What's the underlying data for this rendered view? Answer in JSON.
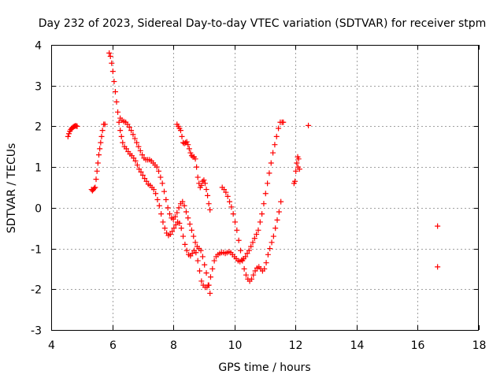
{
  "chart_data": {
    "type": "scatter",
    "title": "Day 232 of 2023, Sidereal Day-to-day VTEC variation (SDTVAR) for receiver stpm",
    "xlabel": "GPS time / hours",
    "ylabel": "SDTVAR / TECUs",
    "xlim": [
      4,
      18
    ],
    "ylim": [
      -3,
      4
    ],
    "xticks": [
      "4",
      "6",
      "8",
      "10",
      "12",
      "14",
      "16",
      "18"
    ],
    "yticks": [
      "-3",
      "-2",
      "-1",
      "0",
      "1",
      "2",
      "3",
      "4"
    ],
    "grid": true,
    "marker": "+",
    "series": [
      {
        "name": "SDTVAR",
        "color": "#ff0000",
        "x": [
          4.55,
          4.58,
          4.61,
          4.64,
          4.67,
          4.7,
          4.73,
          4.76,
          4.79,
          4.82,
          4.85,
          5.32,
          5.35,
          5.38,
          5.41,
          5.44,
          5.47,
          5.5,
          5.53,
          5.56,
          5.59,
          5.62,
          5.65,
          5.68,
          5.72,
          5.76,
          5.9,
          5.94,
          5.98,
          6.02,
          6.06,
          6.1,
          6.14,
          6.18,
          6.22,
          6.26,
          6.3,
          6.34,
          6.4,
          6.46,
          6.52,
          6.58,
          6.64,
          6.7,
          6.76,
          6.82,
          6.88,
          6.94,
          7.0,
          7.06,
          7.12,
          7.18,
          7.24,
          7.3,
          7.36,
          7.42,
          7.48,
          7.54,
          7.6,
          7.66,
          7.72,
          7.78,
          7.84,
          7.9,
          7.96,
          8.02,
          8.08,
          8.14,
          8.2,
          8.26,
          8.32,
          8.38,
          8.44,
          8.5,
          8.56,
          8.62,
          8.68,
          8.74,
          8.8,
          8.86,
          8.92,
          8.98,
          9.04,
          9.1,
          9.16,
          9.22,
          9.28,
          9.34,
          9.4,
          9.46,
          9.52,
          9.58,
          9.64,
          9.7,
          9.76,
          9.82,
          9.88,
          9.94,
          10.0,
          10.06,
          10.12,
          10.18,
          10.24,
          10.3,
          10.36,
          10.42,
          10.48,
          10.54,
          10.6,
          10.66,
          10.72,
          10.78,
          10.84,
          10.9,
          10.96,
          11.02,
          11.08,
          11.14,
          11.2,
          11.26,
          11.32,
          11.38,
          11.44,
          11.5,
          11.56,
          11.6,
          6.26,
          6.32,
          6.38,
          6.44,
          6.5,
          6.56,
          6.62,
          6.68,
          6.74,
          6.8,
          6.86,
          6.92,
          6.98,
          7.04,
          7.1,
          7.16,
          7.22,
          7.28,
          7.34,
          7.4,
          7.46,
          7.52,
          7.58,
          7.64,
          7.7,
          7.76,
          7.82,
          7.88,
          7.94,
          8.0,
          8.06,
          8.12,
          8.18,
          8.24,
          8.3,
          8.36,
          8.42,
          8.48,
          8.54,
          8.6,
          8.66,
          8.72,
          8.78,
          8.84,
          8.9,
          8.96,
          9.02,
          9.08,
          9.14,
          9.2,
          8.12,
          8.16,
          8.2,
          8.24,
          8.28,
          8.32,
          8.36,
          8.4,
          8.44,
          8.48,
          8.52,
          8.56,
          8.6,
          8.64,
          8.68,
          8.72,
          8.76,
          8.8,
          8.84,
          8.88,
          8.92,
          8.96,
          9.0,
          9.04,
          9.08,
          9.12,
          9.16,
          9.2,
          9.6,
          9.66,
          9.72,
          9.78,
          9.84,
          9.9,
          9.96,
          10.02,
          10.08,
          10.14,
          10.2,
          10.26,
          10.32,
          10.38,
          10.44,
          10.5,
          10.56,
          10.62,
          10.68,
          10.74,
          10.8,
          10.86,
          10.92,
          10.98,
          11.04,
          11.1,
          11.16,
          11.22,
          11.28,
          11.34,
          11.4,
          11.46,
          11.52,
          11.95,
          11.98,
          12.01,
          12.04,
          12.07,
          12.1,
          12.13,
          12.08,
          12.42,
          16.65,
          16.65
        ],
        "y": [
          1.75,
          1.82,
          1.88,
          1.92,
          1.95,
          1.97,
          1.99,
          2.0,
          2.01,
          2.01,
          2.0,
          0.45,
          0.42,
          0.45,
          0.48,
          0.5,
          0.7,
          0.9,
          1.1,
          1.3,
          1.45,
          1.6,
          1.75,
          1.9,
          2.05,
          2.05,
          3.8,
          3.72,
          3.55,
          3.35,
          3.1,
          2.85,
          2.6,
          2.35,
          2.1,
          1.9,
          1.75,
          1.6,
          1.5,
          1.45,
          1.38,
          1.32,
          1.28,
          1.22,
          1.15,
          1.05,
          0.95,
          0.88,
          0.8,
          0.72,
          0.65,
          0.58,
          0.55,
          0.5,
          0.45,
          0.35,
          0.2,
          0.05,
          -0.15,
          -0.35,
          -0.5,
          -0.62,
          -0.68,
          -0.65,
          -0.58,
          -0.5,
          -0.42,
          -0.35,
          -0.38,
          -0.5,
          -0.7,
          -0.9,
          -1.05,
          -1.15,
          -1.18,
          -1.12,
          -1.05,
          -1.1,
          -1.3,
          -1.55,
          -1.8,
          -1.9,
          -1.95,
          -1.95,
          -1.9,
          -1.7,
          -1.5,
          -1.3,
          -1.2,
          -1.15,
          -1.12,
          -1.1,
          -1.1,
          -1.12,
          -1.1,
          -1.08,
          -1.1,
          -1.15,
          -1.2,
          -1.25,
          -1.3,
          -1.32,
          -1.28,
          -1.25,
          -1.2,
          -1.12,
          -1.05,
          -0.95,
          -0.85,
          -0.75,
          -0.65,
          -0.55,
          -0.35,
          -0.15,
          0.1,
          0.35,
          0.6,
          0.85,
          1.1,
          1.35,
          1.55,
          1.75,
          1.95,
          2.1,
          2.1,
          2.1,
          2.2,
          2.15,
          2.12,
          2.1,
          2.05,
          1.98,
          1.9,
          1.8,
          1.7,
          1.6,
          1.5,
          1.4,
          1.3,
          1.22,
          1.18,
          1.18,
          1.18,
          1.15,
          1.1,
          1.05,
          1.0,
          0.9,
          0.75,
          0.6,
          0.4,
          0.2,
          0.0,
          -0.15,
          -0.25,
          -0.28,
          -0.22,
          -0.12,
          0.0,
          0.1,
          0.15,
          0.05,
          -0.1,
          -0.25,
          -0.4,
          -0.55,
          -0.7,
          -0.85,
          -0.95,
          -1.0,
          -1.05,
          -1.2,
          -1.4,
          -1.6,
          -1.9,
          -2.1,
          2.05,
          2.0,
          1.95,
          1.9,
          1.75,
          1.6,
          1.58,
          1.6,
          1.62,
          1.55,
          1.45,
          1.35,
          1.28,
          1.25,
          1.25,
          1.2,
          1.0,
          0.75,
          0.6,
          0.5,
          0.55,
          0.65,
          0.68,
          0.6,
          0.45,
          0.3,
          0.1,
          -0.05,
          0.5,
          0.45,
          0.38,
          0.28,
          0.15,
          0.02,
          -0.15,
          -0.35,
          -0.55,
          -0.8,
          -1.05,
          -1.3,
          -1.5,
          -1.65,
          -1.75,
          -1.8,
          -1.75,
          -1.65,
          -1.55,
          -1.48,
          -1.45,
          -1.5,
          -1.55,
          -1.5,
          -1.35,
          -1.15,
          -1.0,
          -0.85,
          -0.7,
          -0.5,
          -0.3,
          -0.1,
          0.15,
          0.6,
          0.65,
          0.9,
          1.1,
          1.25,
          1.2,
          0.95,
          1.0,
          2.02,
          -0.45,
          -1.45
        ]
      }
    ]
  }
}
